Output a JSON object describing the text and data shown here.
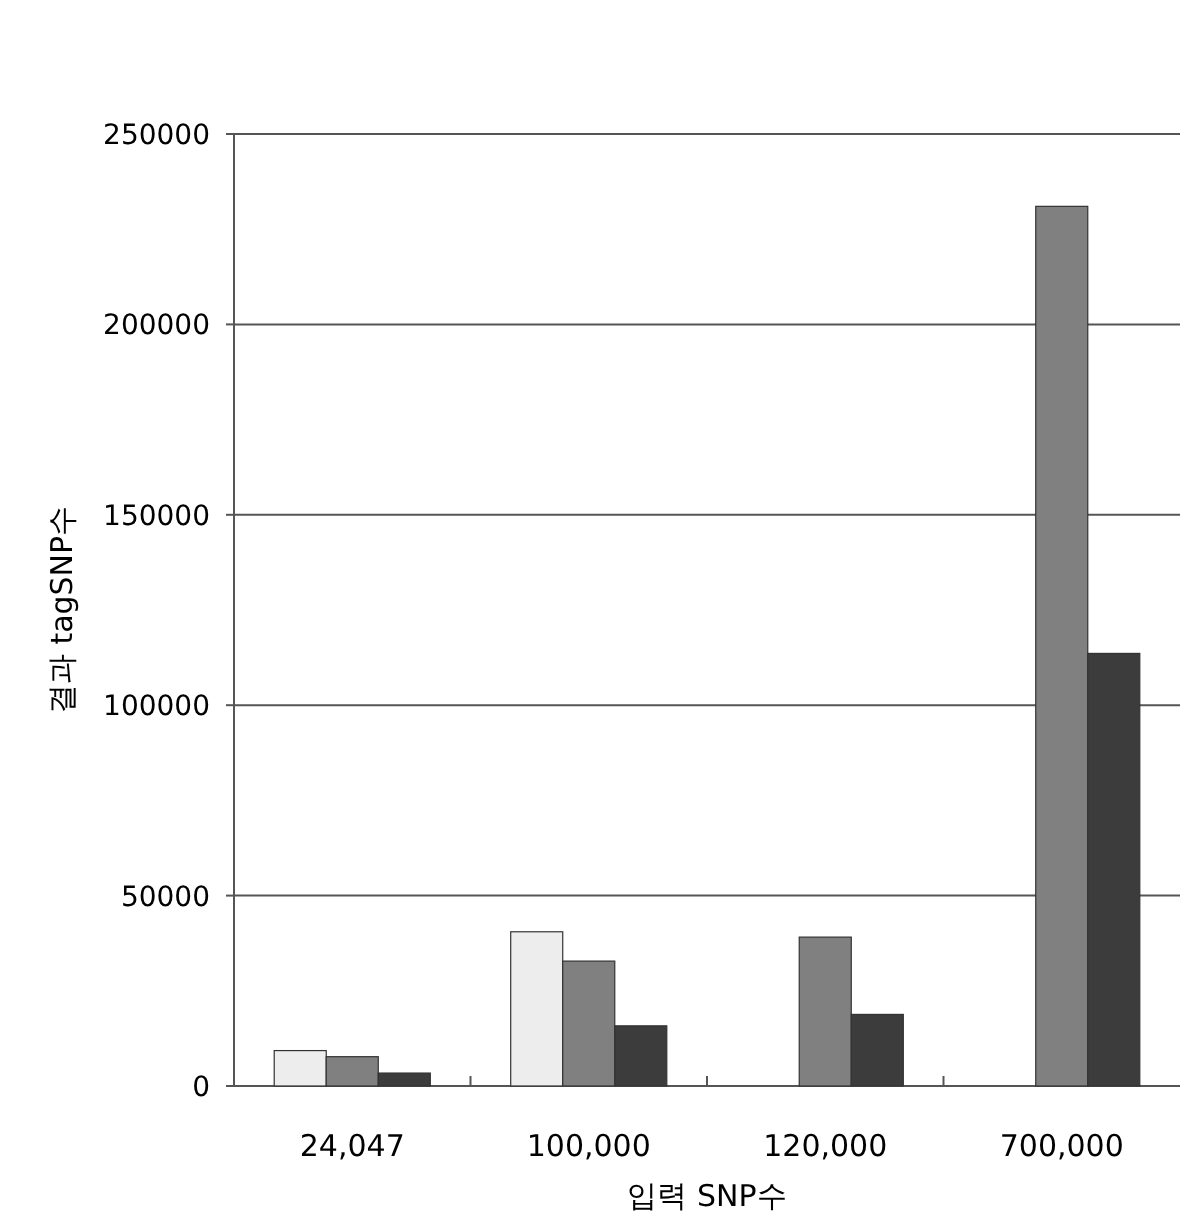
{
  "chart_data": {
    "type": "bar",
    "xlabel": "입력 SNP수",
    "ylabel": "결과 tagSNP수",
    "categories": [
      "24,047",
      "100,000",
      "120,000",
      "700,000"
    ],
    "series": [
      {
        "color": "#ededed",
        "values": [
          9300,
          40500,
          null,
          null
        ]
      },
      {
        "color": "#808080",
        "values": [
          7700,
          32800,
          39100,
          231000
        ]
      },
      {
        "color": "#3c3c3c",
        "values": [
          3400,
          15800,
          18800,
          113600
        ]
      }
    ],
    "ylim": [
      0,
      250000
    ],
    "yticks": [
      0,
      50000,
      100000,
      150000,
      200000,
      250000
    ],
    "grid": "y"
  }
}
